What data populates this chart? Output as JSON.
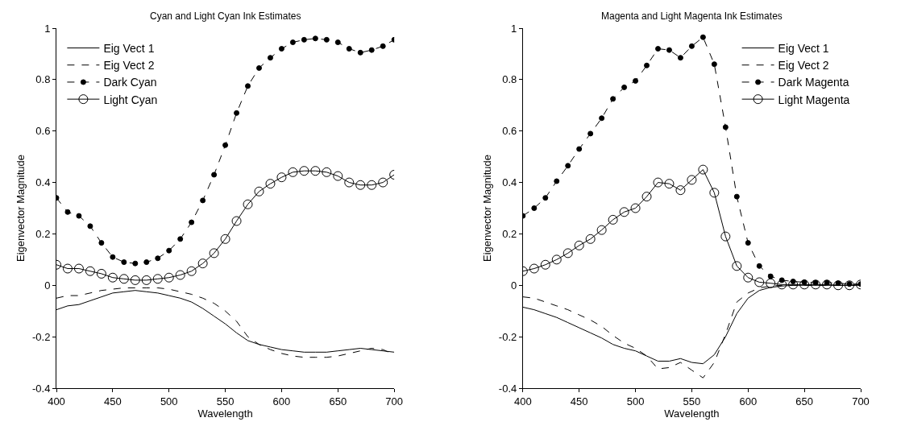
{
  "chart_data": [
    {
      "type": "line",
      "title": "Cyan and Light Cyan Ink Estimates",
      "xlabel": "Wavelength",
      "ylabel": "Eigenvector Magnitude",
      "x": [
        400,
        410,
        420,
        430,
        440,
        450,
        460,
        470,
        480,
        490,
        500,
        510,
        520,
        530,
        540,
        550,
        560,
        570,
        580,
        590,
        600,
        610,
        620,
        630,
        640,
        650,
        660,
        670,
        680,
        690,
        700
      ],
      "series": [
        {
          "name": "Eig Vect 1",
          "color": "#000000",
          "line_style": "solid",
          "marker": "none",
          "values": [
            -0.095,
            -0.08,
            -0.075,
            -0.06,
            -0.045,
            -0.03,
            -0.025,
            -0.02,
            -0.025,
            -0.03,
            -0.04,
            -0.05,
            -0.065,
            -0.09,
            -0.12,
            -0.15,
            -0.185,
            -0.215,
            -0.23,
            -0.24,
            -0.25,
            -0.255,
            -0.26,
            -0.26,
            -0.26,
            -0.255,
            -0.25,
            -0.245,
            -0.25,
            -0.255,
            -0.26
          ]
        },
        {
          "name": "Eig Vect 2",
          "color": "#000000",
          "line_style": "dashed",
          "marker": "none",
          "values": [
            -0.05,
            -0.04,
            -0.04,
            -0.03,
            -0.02,
            -0.015,
            -0.01,
            -0.01,
            -0.01,
            -0.01,
            -0.015,
            -0.025,
            -0.035,
            -0.05,
            -0.07,
            -0.1,
            -0.14,
            -0.2,
            -0.23,
            -0.25,
            -0.265,
            -0.275,
            -0.28,
            -0.28,
            -0.28,
            -0.275,
            -0.265,
            -0.255,
            -0.245,
            -0.25,
            -0.27
          ]
        },
        {
          "name": "Dark Cyan",
          "color": "#000000",
          "line_style": "dashed",
          "marker": "circle",
          "values": [
            0.34,
            0.285,
            0.27,
            0.23,
            0.165,
            0.11,
            0.09,
            0.085,
            0.09,
            0.105,
            0.135,
            0.18,
            0.245,
            0.33,
            0.43,
            0.545,
            0.67,
            0.775,
            0.845,
            0.885,
            0.92,
            0.945,
            0.955,
            0.96,
            0.955,
            0.945,
            0.92,
            0.905,
            0.915,
            0.93,
            0.955
          ]
        },
        {
          "name": "Light Cyan",
          "color": "#000000",
          "line_style": "solid",
          "marker": "circle-open",
          "values": [
            0.08,
            0.065,
            0.065,
            0.055,
            0.045,
            0.03,
            0.025,
            0.02,
            0.02,
            0.025,
            0.03,
            0.04,
            0.055,
            0.085,
            0.125,
            0.18,
            0.25,
            0.315,
            0.365,
            0.395,
            0.42,
            0.44,
            0.445,
            0.445,
            0.44,
            0.425,
            0.4,
            0.39,
            0.39,
            0.4,
            0.43
          ]
        }
      ],
      "xlim": [
        400,
        700
      ],
      "xticks": [
        400,
        450,
        500,
        550,
        600,
        650,
        700
      ],
      "ylim": [
        -0.4,
        1
      ],
      "yticks": [
        -0.4,
        -0.2,
        0,
        0.2,
        0.4,
        0.6,
        0.8,
        1
      ],
      "legend": "top left"
    },
    {
      "type": "line",
      "title": "Magenta and Light Magenta Ink Estimates",
      "xlabel": "Wavelength",
      "ylabel": "Eigenvector Magnitude",
      "x": [
        400,
        410,
        420,
        430,
        440,
        450,
        460,
        470,
        480,
        490,
        500,
        510,
        520,
        530,
        540,
        550,
        560,
        570,
        580,
        590,
        600,
        610,
        620,
        630,
        640,
        650,
        660,
        670,
        680,
        690,
        700
      ],
      "series": [
        {
          "name": "Eig Vect 1",
          "color": "#000000",
          "line_style": "solid",
          "marker": "none",
          "values": [
            -0.085,
            -0.095,
            -0.11,
            -0.125,
            -0.145,
            -0.165,
            -0.185,
            -0.205,
            -0.23,
            -0.245,
            -0.255,
            -0.275,
            -0.295,
            -0.295,
            -0.285,
            -0.3,
            -0.305,
            -0.27,
            -0.2,
            -0.11,
            -0.05,
            -0.02,
            -0.008,
            -0.003,
            0,
            0,
            0,
            0,
            0,
            0,
            0
          ]
        },
        {
          "name": "Eig Vect 2",
          "color": "#000000",
          "line_style": "dashed",
          "marker": "none",
          "values": [
            -0.045,
            -0.05,
            -0.065,
            -0.08,
            -0.095,
            -0.115,
            -0.135,
            -0.16,
            -0.195,
            -0.225,
            -0.245,
            -0.275,
            -0.325,
            -0.32,
            -0.3,
            -0.33,
            -0.36,
            -0.3,
            -0.19,
            -0.065,
            -0.03,
            -0.01,
            -0.003,
            0,
            0,
            0,
            0,
            0,
            0,
            0,
            0
          ]
        },
        {
          "name": "Dark Magenta",
          "color": "#000000",
          "line_style": "dashed",
          "marker": "circle",
          "values": [
            0.27,
            0.3,
            0.34,
            0.405,
            0.465,
            0.53,
            0.59,
            0.65,
            0.725,
            0.77,
            0.795,
            0.855,
            0.92,
            0.915,
            0.885,
            0.93,
            0.965,
            0.86,
            0.615,
            0.345,
            0.165,
            0.075,
            0.035,
            0.02,
            0.015,
            0.012,
            0.01,
            0.01,
            0.008,
            0.005,
            0.005
          ]
        },
        {
          "name": "Light Magenta",
          "color": "#000000",
          "line_style": "solid",
          "marker": "circle-open",
          "values": [
            0.055,
            0.065,
            0.08,
            0.1,
            0.125,
            0.155,
            0.18,
            0.215,
            0.255,
            0.285,
            0.3,
            0.345,
            0.4,
            0.395,
            0.37,
            0.41,
            0.45,
            0.36,
            0.19,
            0.075,
            0.03,
            0.012,
            0.008,
            0.003,
            0.003,
            0.003,
            0.003,
            0.003,
            0,
            0,
            0.003
          ]
        }
      ],
      "xlim": [
        400,
        700
      ],
      "xticks": [
        400,
        450,
        500,
        550,
        600,
        650,
        700
      ],
      "ylim": [
        -0.4,
        1
      ],
      "yticks": [
        -0.4,
        -0.2,
        0,
        0.2,
        0.4,
        0.6,
        0.8,
        1
      ],
      "legend": "top right"
    }
  ]
}
